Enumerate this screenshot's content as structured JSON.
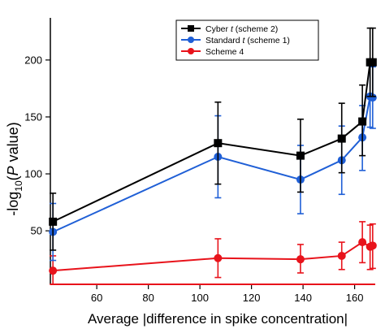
{
  "chart_data": {
    "type": "line",
    "title": "",
    "xlabel": "Average |difference in spike concentration|",
    "ylabel_parts": {
      "prefix": "-log",
      "sub": "10",
      "open": "(",
      "italic": "P",
      "rest": " value)"
    },
    "xlim": [
      42,
      168
    ],
    "ylim": [
      3,
      237
    ],
    "xticks": [
      60,
      80,
      100,
      120,
      140,
      160
    ],
    "yticks": [
      50,
      100,
      150,
      200
    ],
    "grid": false,
    "legend_position": "top-right",
    "legend": [
      {
        "label_pre": "Cyber ",
        "label_italic": "t",
        "label_post": " (scheme 2)",
        "series": 0
      },
      {
        "label_pre": "Standard ",
        "label_italic": "t",
        "label_post": " (scheme 1)",
        "series": 1
      },
      {
        "label_pre": "Scheme 4",
        "label_italic": "",
        "label_post": "",
        "series": 2
      }
    ],
    "series": [
      {
        "color": "#000000",
        "marker": "square",
        "x": [
          43,
          107,
          139,
          155,
          163,
          166,
          167
        ],
        "y": [
          58,
          127,
          116,
          131,
          146,
          198,
          198
        ],
        "err_low": [
          33,
          91,
          84,
          101,
          116,
          168,
          168
        ],
        "err_high": [
          83,
          163,
          148,
          162,
          178,
          228,
          228
        ]
      },
      {
        "color": "#1f5fd6",
        "marker": "circle",
        "x": [
          43,
          107,
          139,
          155,
          163,
          166,
          167
        ],
        "y": [
          49,
          115,
          95,
          112,
          132,
          168,
          167
        ],
        "err_low": [
          24,
          79,
          65,
          82,
          103,
          141,
          140
        ],
        "err_high": [
          74,
          151,
          125,
          142,
          160,
          195,
          194
        ]
      },
      {
        "color": "#e8131b",
        "marker": "circle",
        "x": [
          43,
          107,
          139,
          155,
          163,
          166,
          167
        ],
        "y": [
          15,
          26,
          25,
          28,
          40,
          36,
          37
        ],
        "err_low": [
          3,
          9,
          13,
          16,
          22,
          16,
          17
        ],
        "err_high": [
          28,
          43,
          38,
          40,
          58,
          55,
          56
        ]
      }
    ],
    "baseline": {
      "y": 3,
      "color": "#e8131b"
    }
  }
}
